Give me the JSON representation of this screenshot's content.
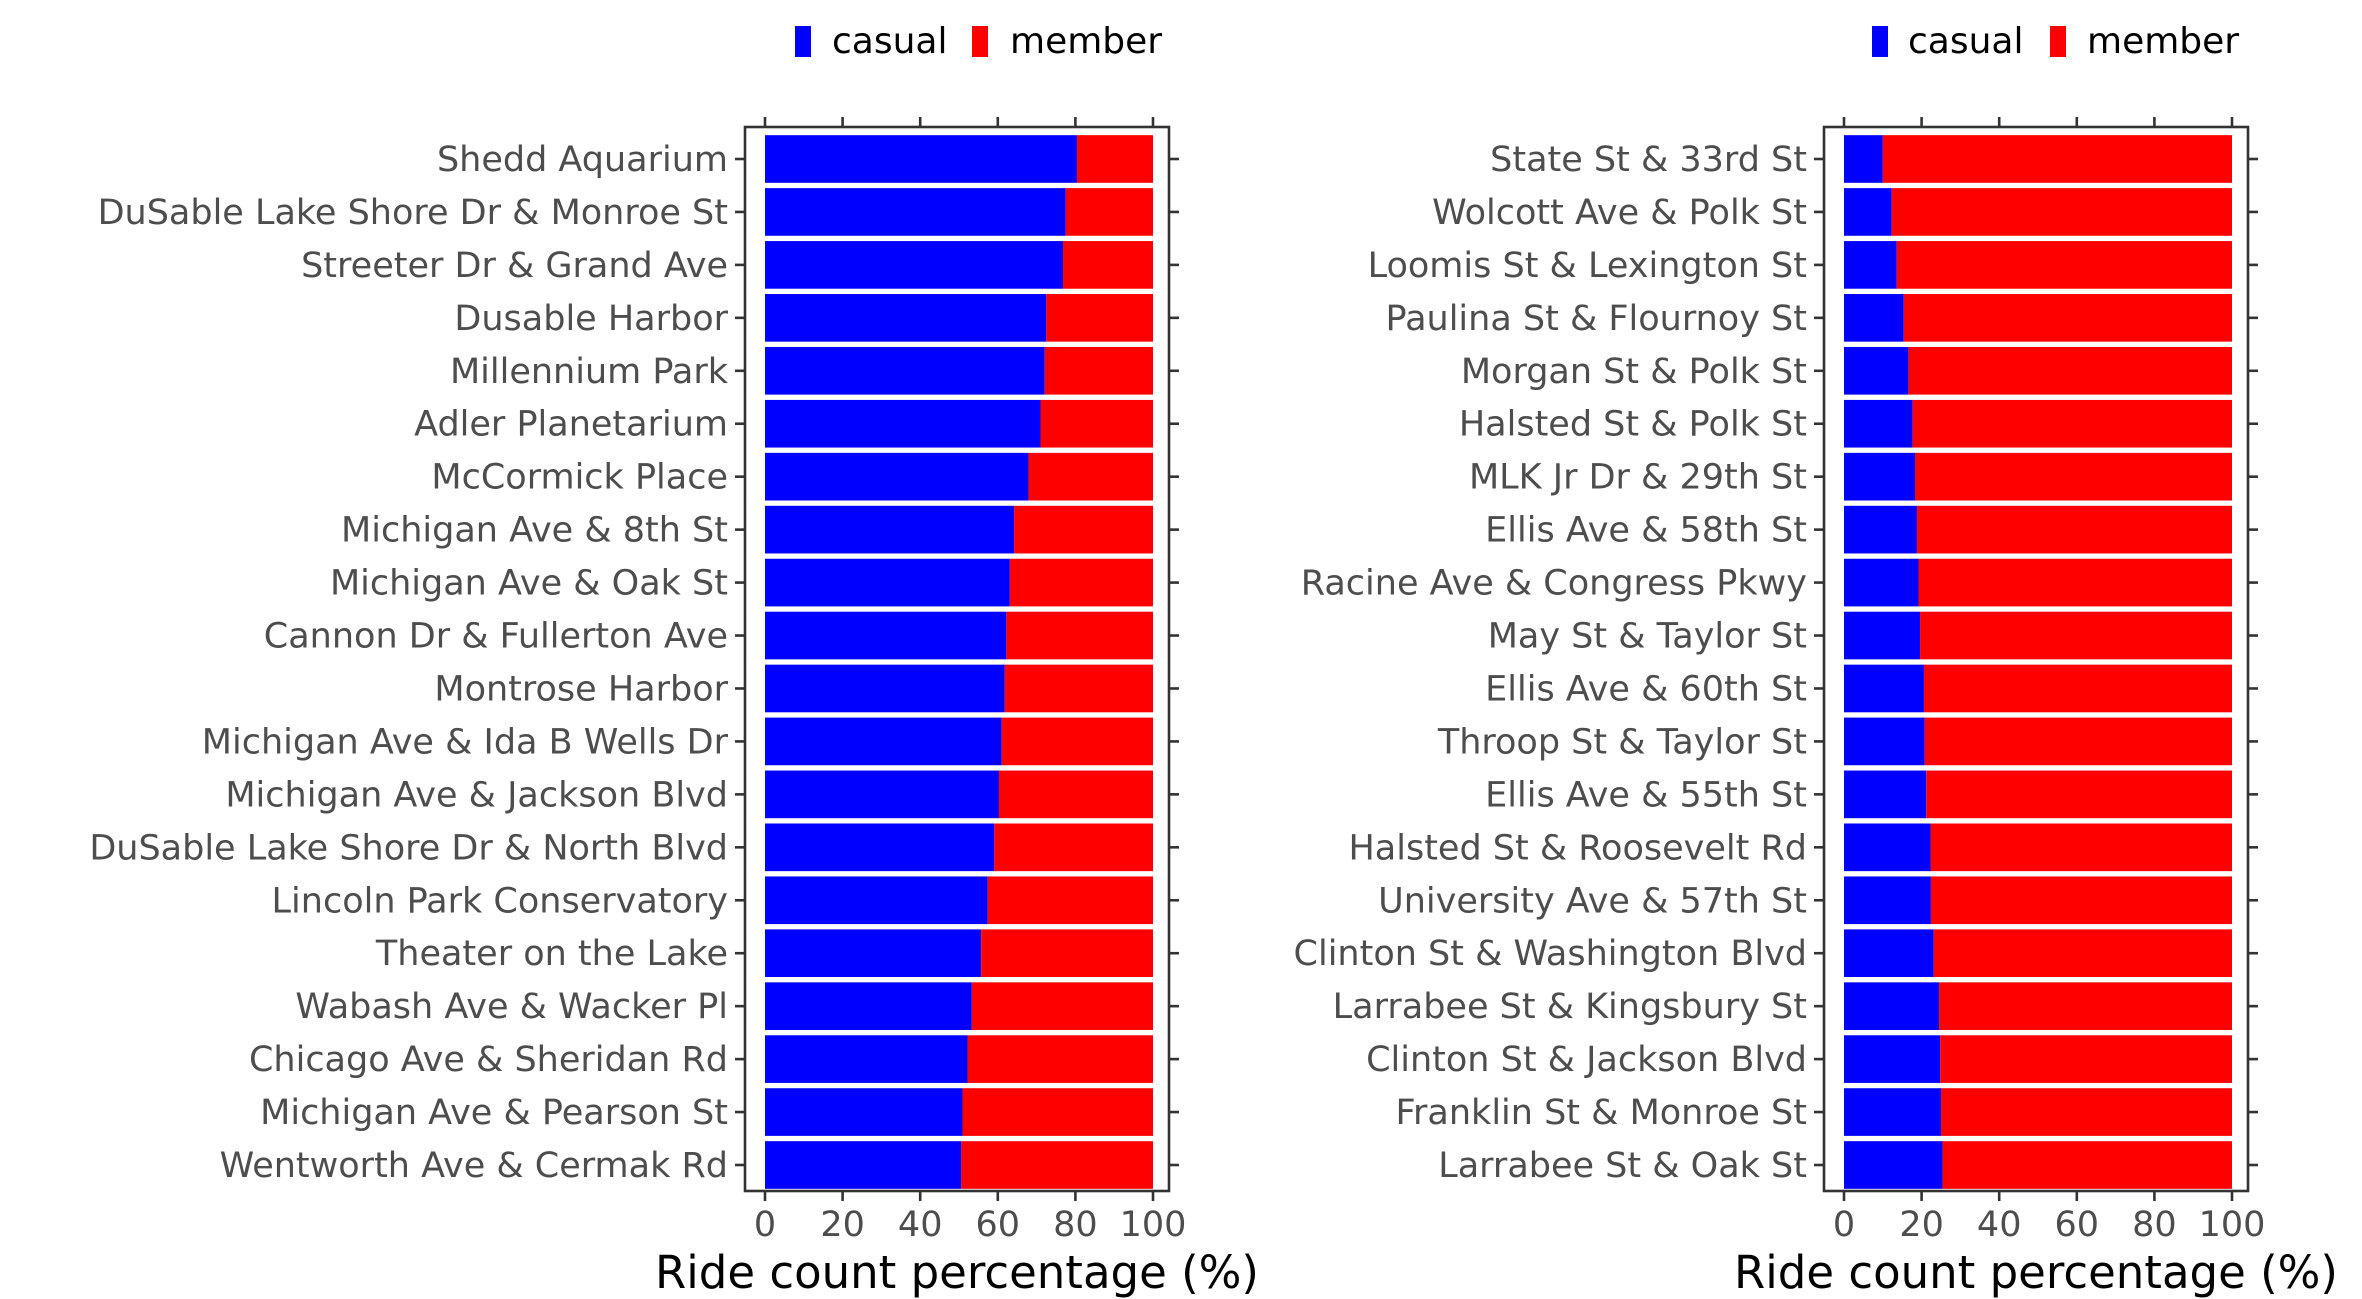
{
  "chart_data": [
    {
      "type": "bar",
      "orientation": "horizontal",
      "stacked": true,
      "categories": [
        "Shedd Aquarium",
        "DuSable Lake Shore Dr & Monroe St",
        "Streeter Dr & Grand Ave",
        "Dusable Harbor",
        "Millennium Park",
        "Adler Planetarium",
        "McCormick Place",
        "Michigan Ave & 8th St",
        "Michigan Ave & Oak St",
        "Cannon Dr & Fullerton Ave",
        "Montrose Harbor",
        "Michigan Ave & Ida B Wells Dr",
        "Michigan Ave & Jackson Blvd",
        "DuSable Lake Shore Dr & North Blvd",
        "Lincoln Park Conservatory",
        "Theater on the Lake",
        "Wabash Ave & Wacker Pl",
        "Chicago Ave & Sheridan Rd",
        "Michigan Ave & Pearson St",
        "Wentworth Ave & Cermak Rd"
      ],
      "series": [
        {
          "name": "casual",
          "color": "#0000ff",
          "values": [
            80.4,
            77.5,
            76.8,
            72.5,
            72.1,
            71.0,
            67.9,
            64.2,
            63.1,
            62.2,
            61.8,
            61.0,
            60.3,
            59.1,
            57.4,
            55.7,
            53.3,
            52.2,
            50.9,
            50.6
          ]
        },
        {
          "name": "member",
          "color": "#ff0000",
          "values": [
            19.6,
            22.5,
            23.2,
            27.5,
            27.9,
            29.0,
            32.1,
            35.8,
            36.9,
            37.8,
            38.2,
            39.0,
            39.7,
            40.9,
            42.6,
            44.3,
            46.7,
            47.8,
            49.1,
            49.4
          ]
        }
      ],
      "xlabel": "Ride count percentage (%)",
      "ylabel": "",
      "xlim": [
        0,
        100
      ],
      "xticks": [
        0,
        20,
        40,
        60,
        80,
        100
      ],
      "legend_position": "top",
      "grid": false
    },
    {
      "type": "bar",
      "orientation": "horizontal",
      "stacked": true,
      "categories": [
        "State St & 33rd St",
        "Wolcott Ave & Polk St",
        "Loomis St & Lexington St",
        "Paulina St & Flournoy St",
        "Morgan St & Polk St",
        "Halsted St & Polk St",
        "MLK Jr Dr & 29th St",
        "Ellis Ave & 58th St",
        "Racine Ave & Congress Pkwy",
        "May St & Taylor St",
        "Ellis Ave & 60th St",
        "Throop St & Taylor St",
        "Ellis Ave & 55th St",
        "Halsted St & Roosevelt Rd",
        "University Ave & 57th St",
        "Clinton St & Washington Blvd",
        "Larrabee St & Kingsbury St",
        "Clinton St & Jackson Blvd",
        "Franklin St & Monroe St",
        "Larrabee St & Oak St"
      ],
      "series": [
        {
          "name": "casual",
          "color": "#0000ff",
          "values": [
            10.0,
            12.3,
            13.6,
            15.4,
            16.6,
            17.7,
            18.3,
            18.8,
            19.2,
            19.6,
            20.6,
            20.8,
            21.2,
            22.3,
            22.4,
            23.1,
            24.5,
            24.8,
            25.0,
            25.4
          ]
        },
        {
          "name": "member",
          "color": "#ff0000",
          "values": [
            90.0,
            87.7,
            86.4,
            84.6,
            83.4,
            82.3,
            81.7,
            81.2,
            80.8,
            80.4,
            79.4,
            79.2,
            78.8,
            77.7,
            77.6,
            76.9,
            75.5,
            75.2,
            75.0,
            74.6
          ]
        }
      ],
      "xlabel": "Ride count percentage (%)",
      "ylabel": "",
      "xlim": [
        0,
        100
      ],
      "xticks": [
        0,
        20,
        40,
        60,
        80,
        100
      ],
      "legend_position": "top",
      "grid": false
    }
  ]
}
